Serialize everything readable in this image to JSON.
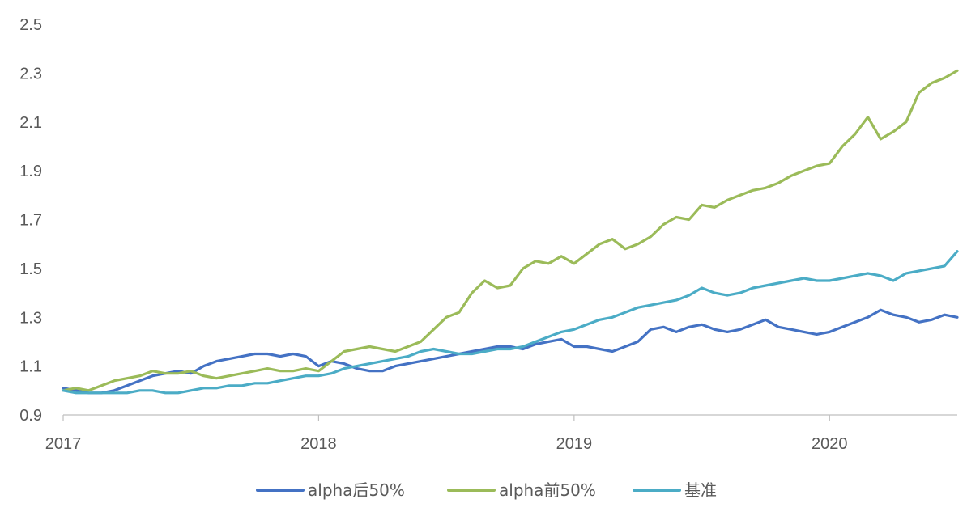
{
  "chart_data": {
    "type": "line",
    "xlabel": "",
    "ylabel": "",
    "xlim": [
      2017.0,
      2020.5
    ],
    "ylim": [
      0.9,
      2.5
    ],
    "yticks": [
      "0.9",
      "1.1",
      "1.3",
      "1.5",
      "1.7",
      "1.9",
      "2.1",
      "2.3",
      "2.5"
    ],
    "xticks": [
      {
        "value": 2017,
        "label": "2017"
      },
      {
        "value": 2018,
        "label": "2018"
      },
      {
        "value": 2019,
        "label": "2019"
      },
      {
        "value": 2020,
        "label": "2020"
      }
    ],
    "grid": false,
    "legend_position": "bottom",
    "series": [
      {
        "name": "alpha后50%",
        "color": "#4472C4",
        "x": [
          2017.0,
          2017.05,
          2017.1,
          2017.15,
          2017.2,
          2017.25,
          2017.3,
          2017.35,
          2017.4,
          2017.45,
          2017.5,
          2017.55,
          2017.6,
          2017.65,
          2017.7,
          2017.75,
          2017.8,
          2017.85,
          2017.9,
          2017.95,
          2018.0,
          2018.05,
          2018.1,
          2018.15,
          2018.2,
          2018.25,
          2018.3,
          2018.35,
          2018.4,
          2018.45,
          2018.5,
          2018.55,
          2018.6,
          2018.65,
          2018.7,
          2018.75,
          2018.8,
          2018.85,
          2018.9,
          2018.95,
          2019.0,
          2019.05,
          2019.1,
          2019.15,
          2019.2,
          2019.25,
          2019.3,
          2019.35,
          2019.4,
          2019.45,
          2019.5,
          2019.55,
          2019.6,
          2019.65,
          2019.7,
          2019.75,
          2019.8,
          2019.85,
          2019.9,
          2019.95,
          2020.0,
          2020.05,
          2020.1,
          2020.15,
          2020.2,
          2020.25,
          2020.3,
          2020.35,
          2020.4,
          2020.45,
          2020.5
        ],
        "y": [
          1.01,
          1.0,
          0.99,
          0.99,
          1.0,
          1.02,
          1.04,
          1.06,
          1.07,
          1.08,
          1.07,
          1.1,
          1.12,
          1.13,
          1.14,
          1.15,
          1.15,
          1.14,
          1.15,
          1.14,
          1.1,
          1.12,
          1.11,
          1.09,
          1.08,
          1.08,
          1.1,
          1.11,
          1.12,
          1.13,
          1.14,
          1.15,
          1.16,
          1.17,
          1.18,
          1.18,
          1.17,
          1.19,
          1.2,
          1.21,
          1.18,
          1.18,
          1.17,
          1.16,
          1.18,
          1.2,
          1.25,
          1.26,
          1.24,
          1.26,
          1.27,
          1.25,
          1.24,
          1.25,
          1.27,
          1.29,
          1.26,
          1.25,
          1.24,
          1.23,
          1.24,
          1.26,
          1.28,
          1.3,
          1.33,
          1.31,
          1.3,
          1.28,
          1.29,
          1.31,
          1.3
        ]
      },
      {
        "name": "alpha前50%",
        "color": "#9BBB59",
        "x": [
          2017.0,
          2017.05,
          2017.1,
          2017.15,
          2017.2,
          2017.25,
          2017.3,
          2017.35,
          2017.4,
          2017.45,
          2017.5,
          2017.55,
          2017.6,
          2017.65,
          2017.7,
          2017.75,
          2017.8,
          2017.85,
          2017.9,
          2017.95,
          2018.0,
          2018.05,
          2018.1,
          2018.15,
          2018.2,
          2018.25,
          2018.3,
          2018.35,
          2018.4,
          2018.45,
          2018.5,
          2018.55,
          2018.6,
          2018.65,
          2018.7,
          2018.75,
          2018.8,
          2018.85,
          2018.9,
          2018.95,
          2019.0,
          2019.05,
          2019.1,
          2019.15,
          2019.2,
          2019.25,
          2019.3,
          2019.35,
          2019.4,
          2019.45,
          2019.5,
          2019.55,
          2019.6,
          2019.65,
          2019.7,
          2019.75,
          2019.8,
          2019.85,
          2019.9,
          2019.95,
          2020.0,
          2020.05,
          2020.1,
          2020.15,
          2020.2,
          2020.25,
          2020.3,
          2020.35,
          2020.4,
          2020.45,
          2020.5
        ],
        "y": [
          1.0,
          1.01,
          1.0,
          1.02,
          1.04,
          1.05,
          1.06,
          1.08,
          1.07,
          1.07,
          1.08,
          1.06,
          1.05,
          1.06,
          1.07,
          1.08,
          1.09,
          1.08,
          1.08,
          1.09,
          1.08,
          1.12,
          1.16,
          1.17,
          1.18,
          1.17,
          1.16,
          1.18,
          1.2,
          1.25,
          1.3,
          1.32,
          1.4,
          1.45,
          1.42,
          1.43,
          1.5,
          1.53,
          1.52,
          1.55,
          1.52,
          1.56,
          1.6,
          1.62,
          1.58,
          1.6,
          1.63,
          1.68,
          1.71,
          1.7,
          1.76,
          1.75,
          1.78,
          1.8,
          1.82,
          1.83,
          1.85,
          1.88,
          1.9,
          1.92,
          1.93,
          2.0,
          2.05,
          2.12,
          2.03,
          2.06,
          2.1,
          2.22,
          2.26,
          2.28,
          2.31
        ]
      },
      {
        "name": "基准",
        "color": "#4BACC6",
        "x": [
          2017.0,
          2017.05,
          2017.1,
          2017.15,
          2017.2,
          2017.25,
          2017.3,
          2017.35,
          2017.4,
          2017.45,
          2017.5,
          2017.55,
          2017.6,
          2017.65,
          2017.7,
          2017.75,
          2017.8,
          2017.85,
          2017.9,
          2017.95,
          2018.0,
          2018.05,
          2018.1,
          2018.15,
          2018.2,
          2018.25,
          2018.3,
          2018.35,
          2018.4,
          2018.45,
          2018.5,
          2018.55,
          2018.6,
          2018.65,
          2018.7,
          2018.75,
          2018.8,
          2018.85,
          2018.9,
          2018.95,
          2019.0,
          2019.05,
          2019.1,
          2019.15,
          2019.2,
          2019.25,
          2019.3,
          2019.35,
          2019.4,
          2019.45,
          2019.5,
          2019.55,
          2019.6,
          2019.65,
          2019.7,
          2019.75,
          2019.8,
          2019.85,
          2019.9,
          2019.95,
          2020.0,
          2020.05,
          2020.1,
          2020.15,
          2020.2,
          2020.25,
          2020.3,
          2020.35,
          2020.4,
          2020.45,
          2020.5
        ],
        "y": [
          1.0,
          0.99,
          0.99,
          0.99,
          0.99,
          0.99,
          1.0,
          1.0,
          0.99,
          0.99,
          1.0,
          1.01,
          1.01,
          1.02,
          1.02,
          1.03,
          1.03,
          1.04,
          1.05,
          1.06,
          1.06,
          1.07,
          1.09,
          1.1,
          1.11,
          1.12,
          1.13,
          1.14,
          1.16,
          1.17,
          1.16,
          1.15,
          1.15,
          1.16,
          1.17,
          1.17,
          1.18,
          1.2,
          1.22,
          1.24,
          1.25,
          1.27,
          1.29,
          1.3,
          1.32,
          1.34,
          1.35,
          1.36,
          1.37,
          1.39,
          1.42,
          1.4,
          1.39,
          1.4,
          1.42,
          1.43,
          1.44,
          1.45,
          1.46,
          1.45,
          1.45,
          1.46,
          1.47,
          1.48,
          1.47,
          1.45,
          1.48,
          1.49,
          1.5,
          1.51,
          1.57
        ]
      }
    ]
  }
}
